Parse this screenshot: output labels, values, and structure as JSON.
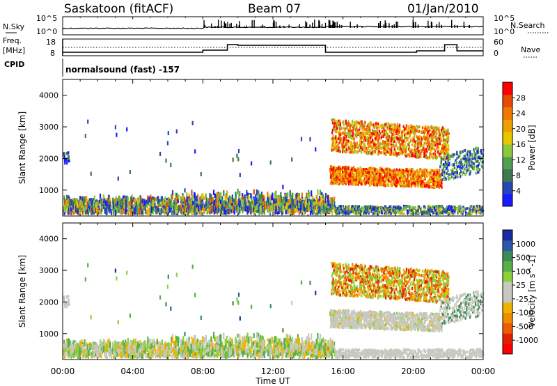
{
  "header": {
    "title": "Saskatoon (fitACF)",
    "beam": "Beam 07",
    "date": "01/Jan/2010"
  },
  "status_panels": {
    "nsky_label": "N.Sky",
    "nsky_ticks": [
      "10^5",
      "10^0"
    ],
    "nsearch_label": "N.Search",
    "nsearch_ticks": [
      "10^5",
      "10^0"
    ],
    "freq_label_1": "Freq.",
    "freq_label_2": "[MHz]",
    "freq_ticks": [
      "18",
      "8"
    ],
    "nave_label": "Nave",
    "nave_ticks": [
      "60",
      "0"
    ],
    "cpid_label": "CPID",
    "cpid_text": "normalsound (fast) -157"
  },
  "colors": {
    "power": [
      "#1a1aff",
      "#2846b4",
      "#3c7850",
      "#50a050",
      "#8cc83c",
      "#e6c800",
      "#f0a000",
      "#f07800",
      "#e64b00",
      "#ff0000"
    ],
    "velocity": [
      "#1a2aa0",
      "#2c5aa8",
      "#3f8b55",
      "#55b04a",
      "#8ad13c",
      "#c8c8c0",
      "#c8c8c0",
      "#f0b400",
      "#f08c00",
      "#f05a00",
      "#e61e00",
      "#ff0000"
    ]
  },
  "chart_data": [
    {
      "type": "heatmap",
      "name": "power",
      "ylabel": "Slant Range [km]",
      "ylim": [
        180,
        4500
      ],
      "yticks": [
        "1000",
        "2000",
        "3000",
        "4000"
      ],
      "xlim": [
        0,
        24
      ],
      "colorbar_label": "Power [dB]",
      "colorbar_ticks": [
        "4",
        "8",
        "12",
        "16",
        "20",
        "24",
        "28"
      ],
      "colorbar_range": [
        0,
        30
      ]
    },
    {
      "type": "heatmap",
      "name": "velocity",
      "ylabel": "Velocity [m s^-1]",
      "yaxis_label": "Slant Range [km]",
      "ylim": [
        180,
        4500
      ],
      "yticks": [
        "1000",
        "2000",
        "3000",
        "4000"
      ],
      "xlim": [
        0,
        24
      ],
      "xlabel": "Time UT",
      "xticks": [
        "00:00",
        "04:00",
        "08:00",
        "12:00",
        "16:00",
        "20:00",
        "00:00"
      ],
      "colorbar_ticks": [
        "1000",
        "500",
        "100",
        "25",
        "-25",
        "-100",
        "-500",
        "-1000"
      ]
    }
  ]
}
